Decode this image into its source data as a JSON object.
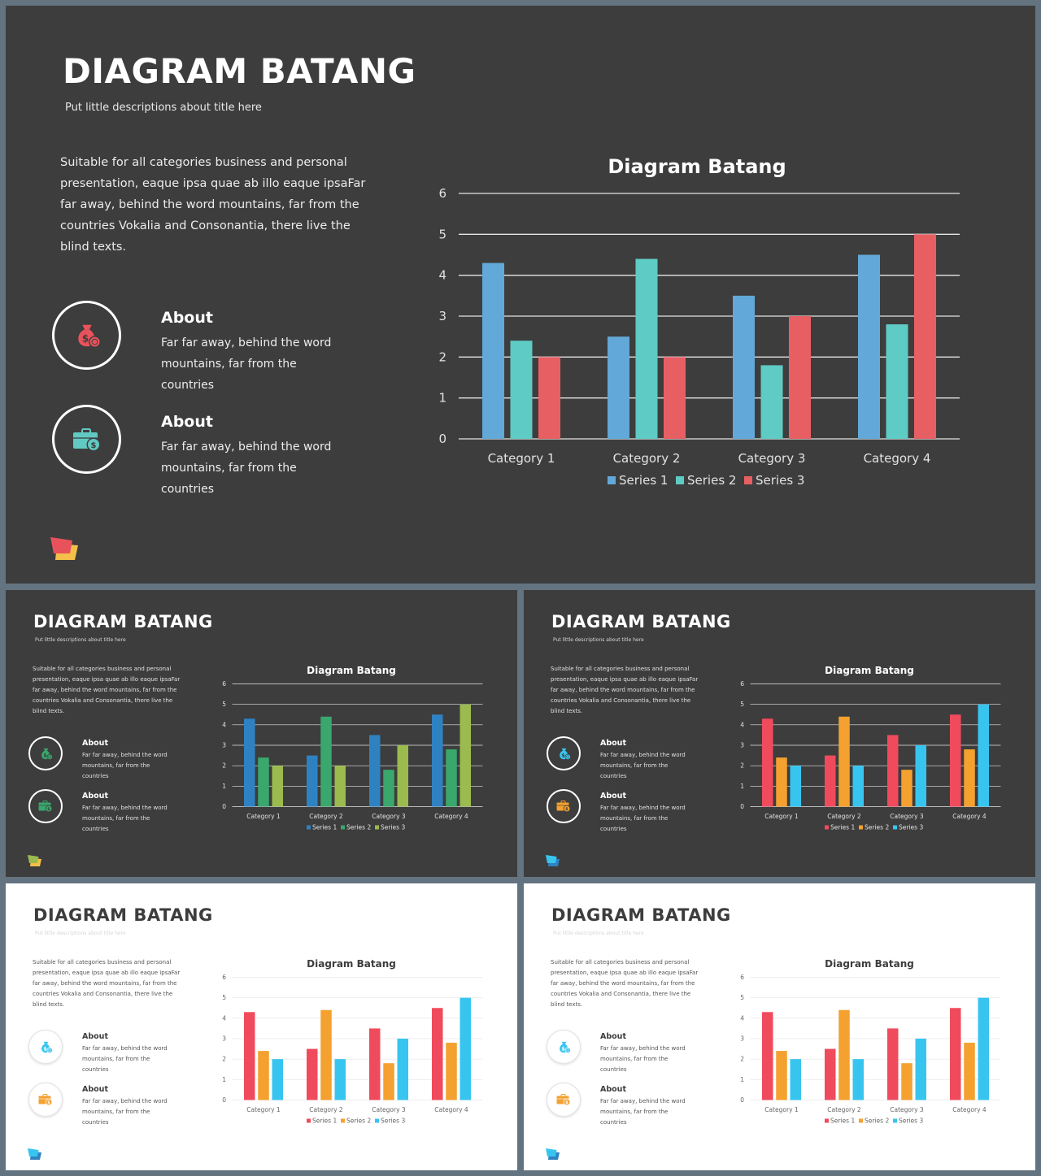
{
  "slides": [
    {
      "id": "s1",
      "theme": "dark",
      "title": "DIAGRAM BATANG",
      "subtitle": "Put little descriptions about title here",
      "description": "Suitable for all categories business and personal presentation, eaque ipsa quae ab illo eaque ipsaFar far away, behind the word mountains, far from the countries Vokalia and Consonantia, there live the blind texts.",
      "about": [
        {
          "heading": "About",
          "text": "Far far away, behind the word mountains, far from the countries",
          "icon": "money-bag-icon",
          "icon_color": "#e8535b"
        },
        {
          "heading": "About",
          "text": "Far far away, behind the word mountains, far from the countries",
          "icon": "briefcase-money-icon",
          "icon_color": "#62c8c2"
        }
      ],
      "logo_colors": [
        "#e8535b",
        "#f5c04a"
      ],
      "colors": [
        "#62a8d8",
        "#5ecbc4",
        "#e85f63"
      ]
    },
    {
      "id": "s2",
      "theme": "dark",
      "title": "DIAGRAM BATANG",
      "subtitle": "Put little descriptions about title here",
      "description": "Suitable for all categories business and personal presentation, eaque ipsa quae ab illo eaque ipsaFar far away, behind the word mountains, far from the countries Vokalia and Consonantia, there live the blind texts.",
      "about": [
        {
          "heading": "About",
          "text": "Far far away, behind the word mountains, far from the countries",
          "icon": "money-bag-icon",
          "icon_color": "#3aa76d"
        },
        {
          "heading": "About",
          "text": "Far far away, behind the word mountains, far from the countries",
          "icon": "briefcase-money-icon",
          "icon_color": "#3aa76d"
        }
      ],
      "logo_colors": [
        "#9bbb4f",
        "#f5c04a"
      ],
      "colors": [
        "#2f82c2",
        "#3aa76d",
        "#9bbb4f"
      ]
    },
    {
      "id": "s3",
      "theme": "dark",
      "title": "DIAGRAM BATANG",
      "subtitle": "Put little descriptions about title here",
      "description": "Suitable for all categories business and personal presentation, eaque ipsa quae ab illo eaque ipsaFar far away, behind the word mountains, far from the countries Vokalia and Consonantia, there live the blind texts.",
      "about": [
        {
          "heading": "About",
          "text": "Far far away, behind the word mountains, far from the countries",
          "icon": "money-bag-icon",
          "icon_color": "#37c5f0"
        },
        {
          "heading": "About",
          "text": "Far far away, behind the word mountains, far from the countries",
          "icon": "briefcase-money-icon",
          "icon_color": "#f4a12f"
        }
      ],
      "logo_colors": [
        "#37c5f0",
        "#2f82c2"
      ],
      "colors": [
        "#f04b5d",
        "#f4a12f",
        "#37c5f0"
      ]
    },
    {
      "id": "s4",
      "theme": "light",
      "title": "DIAGRAM BATANG",
      "subtitle": "Put little descriptions about title here",
      "description": "Suitable for all categories business and personal presentation, eaque ipsa quae ab illo eaque ipsaFar far away, behind the word mountains, far from the countries Vokalia and Consonantia, there live the blind texts.",
      "about": [
        {
          "heading": "About",
          "text": "Far far away, behind the word mountains, far from the countries",
          "icon": "money-bag-icon",
          "icon_color": "#37c5f0"
        },
        {
          "heading": "About",
          "text": "Far far away, behind the word mountains, far from the countries",
          "icon": "briefcase-money-icon",
          "icon_color": "#f4a12f"
        }
      ],
      "logo_colors": [
        "#37c5f0",
        "#2f82c2"
      ],
      "colors": [
        "#f04b5d",
        "#f4a12f",
        "#37c5f0"
      ]
    },
    {
      "id": "s5",
      "theme": "light",
      "title": "DIAGRAM BATANG",
      "subtitle": "Put little descriptions about title here",
      "description": "Suitable for all categories business and personal presentation, eaque ipsa quae ab illo eaque ipsaFar far away, behind the word mountains, far from the countries Vokalia and Consonantia, there live the blind texts.",
      "about": [
        {
          "heading": "About",
          "text": "Far far away, behind the word mountains, far from the countries",
          "icon": "money-bag-icon",
          "icon_color": "#37c5f0"
        },
        {
          "heading": "About",
          "text": "Far far away, behind the word mountains, far from the countries",
          "icon": "briefcase-money-icon",
          "icon_color": "#f4a12f"
        }
      ],
      "logo_colors": [
        "#37c5f0",
        "#2f82c2"
      ],
      "colors": [
        "#f04b5d",
        "#f4a12f",
        "#37c5f0"
      ]
    }
  ],
  "chart_data": [
    {
      "type": "bar",
      "title": "Diagram Batang",
      "categories": [
        "Category 1",
        "Category 2",
        "Category 3",
        "Category 4"
      ],
      "series": [
        {
          "name": "Series 1",
          "values": [
            4.3,
            2.5,
            3.5,
            4.5
          ]
        },
        {
          "name": "Series 2",
          "values": [
            2.4,
            4.4,
            1.8,
            2.8
          ]
        },
        {
          "name": "Series 3",
          "values": [
            2,
            2,
            3,
            5
          ]
        }
      ],
      "ylim": [
        0,
        6
      ],
      "yticks": [
        0,
        1,
        2,
        3,
        4,
        5,
        6
      ],
      "grid": true,
      "legend": "bottom"
    },
    {
      "type": "bar",
      "title": "Diagram Batang",
      "categories": [
        "Category 1",
        "Category 2",
        "Category 3",
        "Category 4"
      ],
      "series": [
        {
          "name": "Series 1",
          "values": [
            4.3,
            2.5,
            3.5,
            4.5
          ]
        },
        {
          "name": "Series 2",
          "values": [
            2.4,
            4.4,
            1.8,
            2.8
          ]
        },
        {
          "name": "Series 3",
          "values": [
            2,
            2,
            3,
            5
          ]
        }
      ],
      "ylim": [
        0,
        6
      ],
      "yticks": [
        0,
        1,
        2,
        3,
        4,
        5,
        6
      ],
      "grid": true,
      "legend": "bottom"
    },
    {
      "type": "bar",
      "title": "Diagram Batang",
      "categories": [
        "Category 1",
        "Category 2",
        "Category 3",
        "Category 4"
      ],
      "series": [
        {
          "name": "Series 1",
          "values": [
            4.3,
            2.5,
            3.5,
            4.5
          ]
        },
        {
          "name": "Series 2",
          "values": [
            2.4,
            4.4,
            1.8,
            2.8
          ]
        },
        {
          "name": "Series 3",
          "values": [
            2,
            2,
            3,
            5
          ]
        }
      ],
      "ylim": [
        0,
        6
      ],
      "yticks": [
        0,
        1,
        2,
        3,
        4,
        5,
        6
      ],
      "grid": true,
      "legend": "bottom"
    },
    {
      "type": "bar",
      "title": "Diagram Batang",
      "categories": [
        "Category 1",
        "Category 2",
        "Category 3",
        "Category 4"
      ],
      "series": [
        {
          "name": "Series 1",
          "values": [
            4.3,
            2.5,
            3.5,
            4.5
          ]
        },
        {
          "name": "Series 2",
          "values": [
            2.4,
            4.4,
            1.8,
            2.8
          ]
        },
        {
          "name": "Series 3",
          "values": [
            2,
            2,
            3,
            5
          ]
        }
      ],
      "ylim": [
        0,
        6
      ],
      "yticks": [
        0,
        1,
        2,
        3,
        4,
        5,
        6
      ],
      "grid": true,
      "legend": "bottom"
    },
    {
      "type": "bar",
      "title": "Diagram Batang",
      "categories": [
        "Category 1",
        "Category 2",
        "Category 3",
        "Category 4"
      ],
      "series": [
        {
          "name": "Series 1",
          "values": [
            4.3,
            2.5,
            3.5,
            4.5
          ]
        },
        {
          "name": "Series 2",
          "values": [
            2.4,
            4.4,
            1.8,
            2.8
          ]
        },
        {
          "name": "Series 3",
          "values": [
            2,
            2,
            3,
            5
          ]
        }
      ],
      "ylim": [
        0,
        6
      ],
      "yticks": [
        0,
        1,
        2,
        3,
        4,
        5,
        6
      ],
      "grid": true,
      "legend": "bottom"
    }
  ]
}
